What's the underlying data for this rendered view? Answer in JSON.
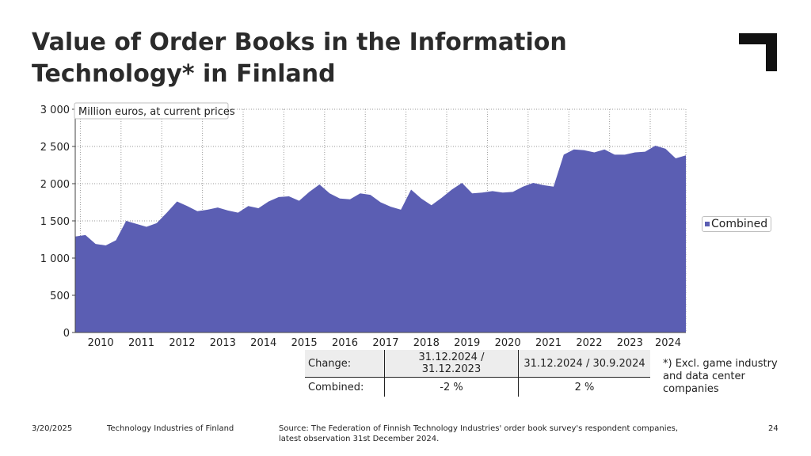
{
  "title": "Value of Order Books in the Information Technology* in Finland",
  "footnote": "*) Excl. game industry and data center companies",
  "footer": {
    "date": "3/20/2025",
    "org": "Technology Industries of Finland",
    "source": "Source: The Federation of Finnish Technology Industries' order book survey's respondent companies, latest observation 31st December 2024.",
    "page": "24"
  },
  "change_table": {
    "header": [
      "Change:",
      "31.12.2024 / 31.12.2023",
      "31.12.2024 / 30.9.2024"
    ],
    "row": [
      "Combined:",
      "-2 %",
      "2 %"
    ]
  },
  "colors": {
    "series": "#5b5eb3",
    "grid": "#9a9a9a"
  },
  "chart_data": {
    "type": "area",
    "unit_label": "Million euros, at current prices",
    "ylim": [
      0,
      3000
    ],
    "yticks": [
      0,
      500,
      1000,
      1500,
      2000,
      2500,
      3000
    ],
    "ytick_labels": [
      "0",
      "500",
      "1 000",
      "1 500",
      "2 000",
      "2 500",
      "3 000"
    ],
    "xtick_labels": [
      "2010",
      "2011",
      "2012",
      "2013",
      "2014",
      "2015",
      "2016",
      "2017",
      "2018",
      "2019",
      "2020",
      "2021",
      "2022",
      "2023",
      "2024"
    ],
    "grid": true,
    "legend_position": "right",
    "x_periods": [
      "2009Q4",
      "2010Q1",
      "2010Q2",
      "2010Q3",
      "2010Q4",
      "2011Q1",
      "2011Q2",
      "2011Q3",
      "2011Q4",
      "2012Q1",
      "2012Q2",
      "2012Q3",
      "2012Q4",
      "2013Q1",
      "2013Q2",
      "2013Q3",
      "2013Q4",
      "2014Q1",
      "2014Q2",
      "2014Q3",
      "2014Q4",
      "2015Q1",
      "2015Q2",
      "2015Q3",
      "2015Q4",
      "2016Q1",
      "2016Q2",
      "2016Q3",
      "2016Q4",
      "2017Q1",
      "2017Q2",
      "2017Q3",
      "2017Q4",
      "2018Q1",
      "2018Q2",
      "2018Q3",
      "2018Q4",
      "2019Q1",
      "2019Q2",
      "2019Q3",
      "2019Q4",
      "2020Q1",
      "2020Q2",
      "2020Q3",
      "2020Q4",
      "2021Q1",
      "2021Q2",
      "2021Q3",
      "2021Q4",
      "2022Q1",
      "2022Q2",
      "2022Q3",
      "2022Q4",
      "2023Q1",
      "2023Q2",
      "2023Q3",
      "2023Q4",
      "2024Q1",
      "2024Q2",
      "2024Q3",
      "2024Q4"
    ],
    "series": [
      {
        "name": "Combined",
        "values": [
          1290,
          1310,
          1190,
          1170,
          1240,
          1500,
          1460,
          1420,
          1470,
          1610,
          1760,
          1700,
          1630,
          1650,
          1680,
          1640,
          1610,
          1700,
          1670,
          1760,
          1820,
          1830,
          1770,
          1890,
          1990,
          1870,
          1800,
          1790,
          1870,
          1850,
          1750,
          1690,
          1650,
          1920,
          1800,
          1710,
          1810,
          1920,
          2010,
          1870,
          1880,
          1900,
          1880,
          1890,
          1960,
          2010,
          1980,
          1960,
          2390,
          2460,
          2450,
          2420,
          2460,
          2390,
          2390,
          2420,
          2430,
          2510,
          2470,
          2340,
          2380
        ]
      }
    ]
  }
}
